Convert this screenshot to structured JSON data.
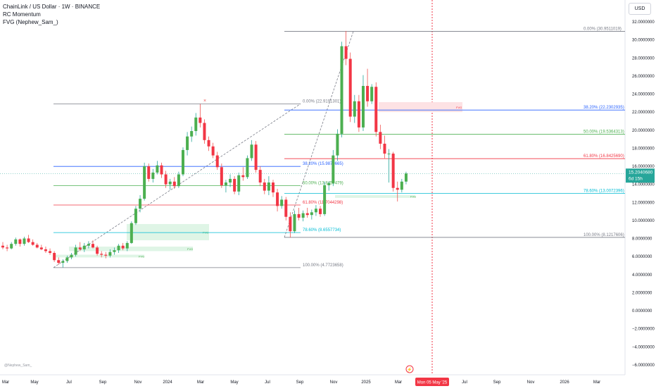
{
  "header": {
    "title": "ChainLink / US Dollar · 1W · BINANCE",
    "indicator1": "RC Momentum",
    "indicator2": "FVG (Nephew_Sam_)"
  },
  "currency_button": "USD",
  "credit": "@Nephew_Sam_",
  "price_axis": {
    "ticks": [
      "32.0000000",
      "30.0000000",
      "28.0000000",
      "26.0000000",
      "24.0000000",
      "22.0000000",
      "20.0000000",
      "18.0000000",
      "16.0000000",
      "14.0000000",
      "12.0000000",
      "10.0000000",
      "8.0000000",
      "6.0000000",
      "4.0000000",
      "2.0000000",
      "0.0000000",
      "−2.0000000",
      "−4.0000000",
      "−6.0000000"
    ],
    "last_price": "15.2040680",
    "countdown": "6d 15h"
  },
  "time_axis": {
    "labels": [
      "Mar",
      "May",
      "Jul",
      "Sep",
      "Nov",
      "2024",
      "Mar",
      "May",
      "Jul",
      "Sep",
      "Nov",
      "2025",
      "Mar",
      "Jul",
      "Sep",
      "Nov",
      "2026",
      "Mar"
    ],
    "highlight_label": "Mon 05 May '25"
  },
  "colors": {
    "up": "#26a69a",
    "down": "#ef5350",
    "bull_body": "#4caf50",
    "bear_body": "#f23645",
    "fib_0": "#787b86",
    "fib_382": "#2962ff",
    "fib_50": "#4caf50",
    "fib_618": "#f23645",
    "fib_786": "#00bcd4",
    "fvg_bull": "#dff5e6",
    "fvg_bear": "#fde2e4",
    "cursor": "#f23645"
  },
  "chart_data": {
    "type": "candlestick",
    "symbol": "LINKUSD",
    "interval": "1W",
    "ylim": [
      -6,
      32.5
    ],
    "fib_retracements": [
      {
        "anchor_low": 4.7723658,
        "anchor_high": 22.9191301,
        "levels": [
          {
            "label": "0.00% (22.9191301)",
            "price": 22.9191301,
            "color": "#787b86"
          },
          {
            "label": "38.20% (15.9870665)",
            "price": 15.9870665,
            "color": "#2962ff"
          },
          {
            "label": "50.00% (13.8457479)",
            "price": 13.8457479,
            "color": "#4caf50"
          },
          {
            "label": "61.80% (11.7044298)",
            "price": 11.7044298,
            "color": "#f23645"
          },
          {
            "label": "78.60% (8.6557734)",
            "price": 8.6557734,
            "color": "#00bcd4"
          },
          {
            "label": "100.00% (4.7723658)",
            "price": 4.7723658,
            "color": "#787b86"
          }
        ]
      },
      {
        "anchor_low": 8.1217606,
        "anchor_high": 30.9511019,
        "levels": [
          {
            "label": "0.00% (30.9511019)",
            "price": 30.9511019,
            "color": "#787b86"
          },
          {
            "label": "38.20% (22.2302935)",
            "price": 22.2302935,
            "color": "#2962ff"
          },
          {
            "label": "50.00% (19.5364313)",
            "price": 19.5364313,
            "color": "#4caf50"
          },
          {
            "label": "61.80% (16.8425690)",
            "price": 16.842569,
            "color": "#f23645"
          },
          {
            "label": "78.60% (13.0072396)",
            "price": 13.0072396,
            "color": "#00bcd4"
          },
          {
            "label": "100.00% (8.1217606)",
            "price": 8.1217606,
            "color": "#787b86"
          }
        ]
      }
    ],
    "fvg_label": "FVG",
    "fvg_zones": [
      {
        "type": "bull",
        "top": 6.2,
        "bottom": 5.9
      },
      {
        "type": "bull",
        "top": 7.1,
        "bottom": 6.6
      },
      {
        "type": "bull",
        "top": 9.6,
        "bottom": 7.8
      },
      {
        "type": "bear",
        "top": 23.1,
        "bottom": 22.0
      },
      {
        "type": "bull",
        "top": 12.8,
        "bottom": 12.5
      }
    ],
    "candles": [
      [
        7.2,
        7.6,
        6.8,
        7.0
      ],
      [
        7.0,
        7.3,
        6.6,
        6.9
      ],
      [
        6.9,
        7.6,
        6.8,
        7.4
      ],
      [
        7.4,
        8.1,
        7.2,
        7.9
      ],
      [
        7.9,
        8.0,
        7.1,
        7.4
      ],
      [
        7.4,
        8.2,
        7.2,
        8.0
      ],
      [
        8.0,
        8.4,
        7.5,
        7.6
      ],
      [
        7.6,
        7.9,
        7.2,
        7.3
      ],
      [
        7.3,
        7.5,
        6.9,
        7.0
      ],
      [
        7.0,
        7.3,
        6.7,
        6.8
      ],
      [
        6.8,
        7.1,
        6.4,
        6.6
      ],
      [
        6.6,
        6.9,
        6.2,
        6.4
      ],
      [
        6.4,
        6.6,
        5.4,
        5.6
      ],
      [
        5.6,
        5.9,
        5.1,
        5.3
      ],
      [
        5.3,
        5.7,
        4.8,
        5.5
      ],
      [
        5.5,
        6.1,
        5.3,
        5.9
      ],
      [
        5.9,
        6.4,
        5.7,
        6.2
      ],
      [
        6.2,
        7.3,
        6.0,
        7.0
      ],
      [
        7.0,
        7.6,
        6.6,
        6.8
      ],
      [
        6.8,
        7.5,
        6.5,
        7.2
      ],
      [
        7.2,
        7.7,
        6.9,
        7.4
      ],
      [
        7.4,
        7.8,
        6.9,
        7.0
      ],
      [
        7.0,
        7.2,
        6.1,
        6.3
      ],
      [
        6.3,
        6.6,
        5.9,
        6.2
      ],
      [
        6.2,
        6.5,
        5.8,
        6.1
      ],
      [
        6.1,
        6.8,
        5.9,
        6.5
      ],
      [
        6.5,
        7.0,
        6.2,
        6.7
      ],
      [
        6.7,
        7.4,
        6.4,
        7.2
      ],
      [
        7.2,
        7.5,
        6.7,
        6.9
      ],
      [
        6.9,
        7.7,
        6.6,
        7.5
      ],
      [
        7.5,
        9.9,
        7.4,
        9.7
      ],
      [
        9.7,
        11.6,
        9.5,
        11.3
      ],
      [
        11.3,
        12.8,
        10.9,
        12.4
      ],
      [
        12.4,
        16.4,
        12.2,
        16.0
      ],
      [
        16.0,
        16.3,
        14.3,
        14.6
      ],
      [
        14.6,
        15.7,
        14.2,
        15.3
      ],
      [
        15.3,
        16.6,
        15.1,
        16.1
      ],
      [
        16.1,
        16.4,
        14.7,
        15.1
      ],
      [
        15.1,
        15.5,
        13.6,
        14.0
      ],
      [
        14.0,
        14.6,
        13.4,
        14.3
      ],
      [
        14.3,
        14.8,
        13.5,
        13.8
      ],
      [
        13.8,
        15.4,
        13.6,
        15.1
      ],
      [
        15.1,
        18.1,
        14.9,
        17.8
      ],
      [
        17.8,
        19.8,
        17.2,
        19.3
      ],
      [
        19.3,
        20.4,
        18.7,
        19.9
      ],
      [
        19.9,
        21.9,
        19.4,
        21.4
      ],
      [
        21.4,
        22.9,
        20.3,
        20.8
      ],
      [
        20.8,
        21.2,
        18.5,
        18.9
      ],
      [
        18.9,
        19.3,
        17.7,
        18.2
      ],
      [
        18.2,
        18.6,
        16.9,
        17.2
      ],
      [
        17.2,
        17.6,
        15.6,
        15.9
      ],
      [
        15.9,
        16.3,
        13.6,
        13.9
      ],
      [
        13.9,
        14.5,
        13.1,
        14.2
      ],
      [
        14.2,
        15.1,
        13.7,
        14.6
      ],
      [
        14.6,
        14.9,
        12.9,
        13.2
      ],
      [
        13.2,
        15.3,
        12.8,
        15.0
      ],
      [
        15.0,
        15.9,
        14.4,
        14.8
      ],
      [
        14.8,
        17.2,
        14.6,
        16.9
      ],
      [
        16.9,
        18.9,
        16.6,
        18.4
      ],
      [
        18.4,
        18.8,
        15.3,
        15.6
      ],
      [
        15.6,
        16.0,
        13.8,
        14.2
      ],
      [
        14.2,
        14.6,
        12.9,
        13.3
      ],
      [
        13.3,
        14.9,
        12.8,
        14.2
      ],
      [
        14.2,
        14.5,
        12.6,
        13.1
      ],
      [
        13.1,
        13.5,
        11.0,
        11.6
      ],
      [
        11.6,
        12.7,
        11.3,
        12.3
      ],
      [
        12.3,
        12.6,
        10.0,
        10.4
      ],
      [
        10.4,
        10.9,
        8.1,
        8.8
      ],
      [
        8.8,
        11.1,
        8.6,
        10.7
      ],
      [
        10.7,
        11.4,
        10.0,
        10.3
      ],
      [
        10.3,
        11.1,
        9.9,
        10.8
      ],
      [
        10.8,
        11.4,
        10.3,
        10.6
      ],
      [
        10.6,
        11.2,
        10.1,
        10.9
      ],
      [
        10.9,
        11.7,
        10.5,
        11.3
      ],
      [
        11.3,
        11.6,
        10.4,
        10.7
      ],
      [
        10.7,
        14.3,
        10.5,
        13.9
      ],
      [
        13.9,
        14.3,
        13.3,
        14.1
      ],
      [
        14.1,
        17.8,
        13.8,
        17.2
      ],
      [
        17.2,
        20.1,
        16.6,
        19.6
      ],
      [
        19.6,
        29.8,
        19.2,
        29.3
      ],
      [
        29.3,
        31.0,
        27.2,
        27.9
      ],
      [
        27.9,
        28.6,
        20.9,
        21.5
      ],
      [
        21.5,
        23.9,
        20.8,
        23.2
      ],
      [
        23.2,
        23.9,
        19.8,
        20.3
      ],
      [
        20.3,
        26.1,
        19.9,
        24.9
      ],
      [
        24.9,
        26.8,
        22.6,
        23.2
      ],
      [
        23.2,
        25.1,
        22.9,
        24.8
      ],
      [
        24.8,
        25.3,
        19.3,
        19.8
      ],
      [
        19.8,
        20.6,
        17.9,
        18.5
      ],
      [
        18.5,
        19.4,
        16.9,
        17.4
      ],
      [
        17.4,
        17.9,
        14.2,
        17.4
      ],
      [
        17.4,
        17.6,
        13.2,
        13.6
      ],
      [
        13.6,
        14.3,
        12.1,
        13.4
      ],
      [
        13.4,
        14.6,
        13.1,
        14.3
      ],
      [
        14.3,
        15.4,
        14.0,
        15.2
      ]
    ]
  }
}
